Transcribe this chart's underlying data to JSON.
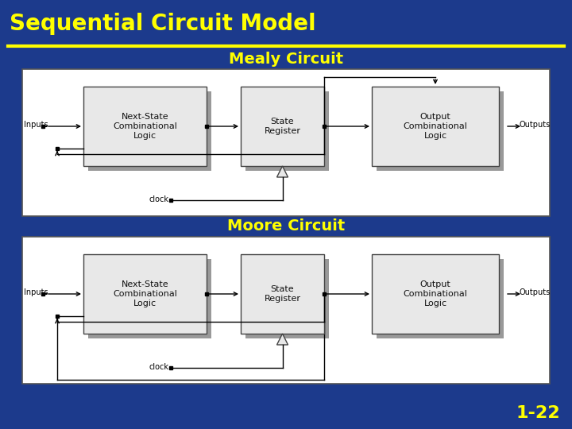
{
  "title": "Sequential Circuit Model",
  "title_color": "#FFFF00",
  "title_fontsize": 20,
  "bg_color": "#1C3A8C",
  "separator_color": "#FFFF00",
  "mealy_label": "Mealy Circuit",
  "moore_label": "Moore Circuit",
  "subtitle_color": "#FFFF00",
  "subtitle_fontsize": 14,
  "page_num": "1-22",
  "page_num_color": "#FFFF00",
  "page_num_fontsize": 16,
  "box_face": "#E8E8E8",
  "box_shadow": "#999999",
  "shadow_off": 6
}
